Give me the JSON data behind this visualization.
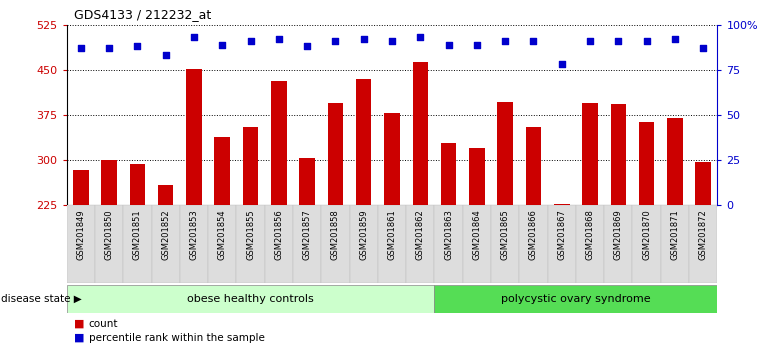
{
  "title": "GDS4133 / 212232_at",
  "samples": [
    "GSM201849",
    "GSM201850",
    "GSM201851",
    "GSM201852",
    "GSM201853",
    "GSM201854",
    "GSM201855",
    "GSM201856",
    "GSM201857",
    "GSM201858",
    "GSM201859",
    "GSM201861",
    "GSM201862",
    "GSM201863",
    "GSM201864",
    "GSM201865",
    "GSM201866",
    "GSM201867",
    "GSM201868",
    "GSM201869",
    "GSM201870",
    "GSM201871",
    "GSM201872"
  ],
  "counts": [
    283,
    300,
    293,
    258,
    451,
    338,
    355,
    432,
    303,
    395,
    435,
    378,
    463,
    328,
    320,
    397,
    355,
    228,
    395,
    393,
    363,
    370,
    297
  ],
  "percentiles": [
    87,
    87,
    88,
    83,
    93,
    89,
    91,
    92,
    88,
    91,
    92,
    91,
    93,
    89,
    89,
    91,
    91,
    78,
    91,
    91,
    91,
    92,
    87
  ],
  "group1_label": "obese healthy controls",
  "group2_label": "polycystic ovary syndrome",
  "group1_count": 13,
  "group2_count": 10,
  "bar_color": "#cc0000",
  "dot_color": "#0000cc",
  "group1_bg": "#ccffcc",
  "group2_bg": "#55dd55",
  "ylim_left": [
    225,
    525
  ],
  "ylim_right": [
    0,
    100
  ],
  "yticks_left": [
    225,
    300,
    375,
    450,
    525
  ],
  "yticks_right": [
    0,
    25,
    50,
    75,
    100
  ],
  "bar_color_hex": "#cc0000",
  "dot_color_hex": "#0000cc",
  "legend_count_label": "count",
  "legend_percentile_label": "percentile rank within the sample",
  "disease_state_label": "disease state"
}
